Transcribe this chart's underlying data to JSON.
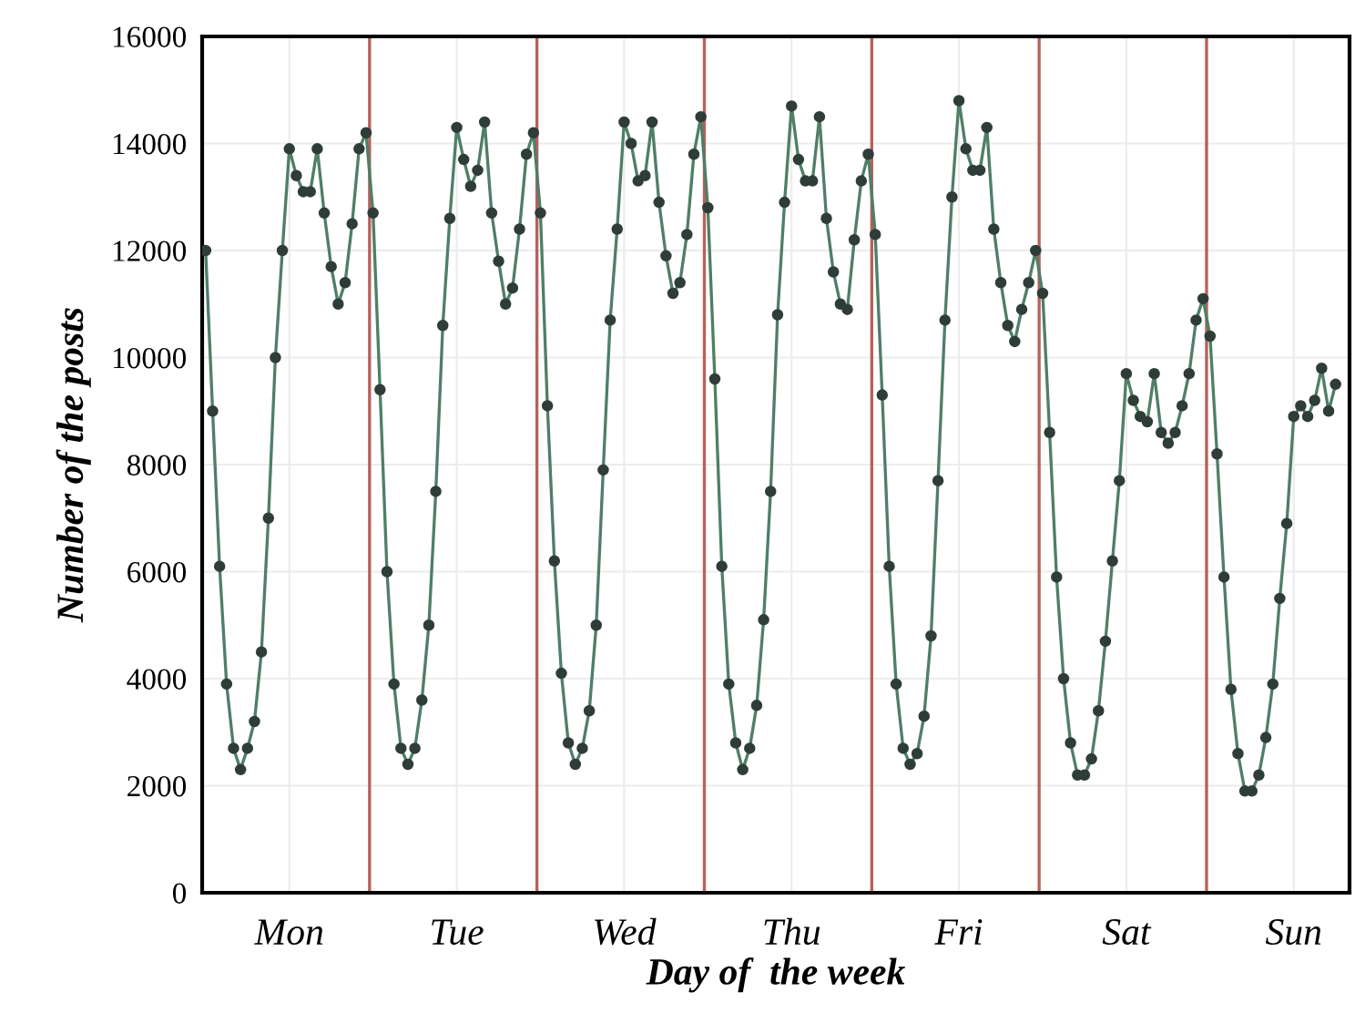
{
  "chart_data": {
    "type": "line",
    "xlabel": "Day of  the week",
    "ylabel": "Number of the posts",
    "categories": [
      null,
      null,
      null,
      null,
      null,
      null,
      null,
      null,
      null,
      null,
      null,
      null,
      "Mon",
      null,
      null,
      null,
      null,
      null,
      null,
      null,
      null,
      null,
      null,
      null,
      null,
      null,
      null,
      null,
      null,
      null,
      null,
      null,
      null,
      null,
      null,
      null,
      "Tue",
      null,
      null,
      null,
      null,
      null,
      null,
      null,
      null,
      null,
      null,
      null,
      null,
      null,
      null,
      null,
      null,
      null,
      null,
      null,
      null,
      null,
      null,
      null,
      "Wed",
      null,
      null,
      null,
      null,
      null,
      null,
      null,
      null,
      null,
      null,
      null,
      null,
      null,
      null,
      null,
      null,
      null,
      null,
      null,
      null,
      null,
      null,
      null,
      "Thu",
      null,
      null,
      null,
      null,
      null,
      null,
      null,
      null,
      null,
      null,
      null,
      null,
      null,
      null,
      null,
      null,
      null,
      null,
      null,
      null,
      null,
      null,
      null,
      "Fri",
      null,
      null,
      null,
      null,
      null,
      null,
      null,
      null,
      null,
      null,
      null,
      null,
      null,
      null,
      null,
      null,
      null,
      null,
      null,
      null,
      null,
      null,
      null,
      "Sat",
      null,
      null,
      null,
      null,
      null,
      null,
      null,
      null,
      null,
      null,
      null,
      null,
      null,
      null,
      null,
      null,
      null,
      null,
      null,
      null,
      null,
      null,
      null,
      "Sun",
      null,
      null,
      null,
      null,
      null,
      null
    ],
    "series": [
      {
        "color": "#4f7f66",
        "values": [
          12000,
          9000,
          6100,
          3900,
          2700,
          2300,
          2700,
          3200,
          4500,
          7000,
          10000,
          12000,
          13900,
          13400,
          13100,
          13100,
          13900,
          12700,
          11700,
          11000,
          11400,
          12500,
          13900,
          14200,
          12700,
          9400,
          6000,
          3900,
          2700,
          2400,
          2700,
          3600,
          5000,
          7500,
          10600,
          12600,
          14300,
          13700,
          13200,
          13500,
          14400,
          12700,
          11800,
          11000,
          11300,
          12400,
          13800,
          14200,
          12700,
          9100,
          6200,
          4100,
          2800,
          2400,
          2700,
          3400,
          5000,
          7900,
          10700,
          12400,
          14400,
          14000,
          13300,
          13400,
          14400,
          12900,
          11900,
          11200,
          11400,
          12300,
          13800,
          14500,
          12800,
          9600,
          6100,
          3900,
          2800,
          2300,
          2700,
          3500,
          5100,
          7500,
          10800,
          12900,
          14700,
          13700,
          13300,
          13300,
          14500,
          12600,
          11600,
          11000,
          10900,
          12200,
          13300,
          13800,
          12300,
          9300,
          6100,
          3900,
          2700,
          2400,
          2600,
          3300,
          4800,
          7700,
          10700,
          13000,
          14800,
          13900,
          13500,
          13500,
          14300,
          12400,
          11400,
          10600,
          10300,
          10900,
          11400,
          12000,
          11200,
          8600,
          5900,
          4000,
          2800,
          2200,
          2200,
          2500,
          3400,
          4700,
          6200,
          7700,
          9700,
          9200,
          8900,
          8800,
          9700,
          8600,
          8400,
          8600,
          9100,
          9700,
          10700,
          11100,
          10400,
          8200,
          5900,
          3800,
          2600,
          1900,
          1900,
          2200,
          2900,
          3900,
          5500,
          6900,
          8900,
          9100,
          8900,
          9200,
          9800,
          9000,
          9500
        ]
      }
    ],
    "marker": "circle",
    "line_style": "solid",
    "ylim": [
      0,
      16000
    ],
    "yticks": [
      0,
      2000,
      4000,
      6000,
      8000,
      10000,
      12000,
      14000,
      16000
    ],
    "grid": true,
    "legend": false
  }
}
